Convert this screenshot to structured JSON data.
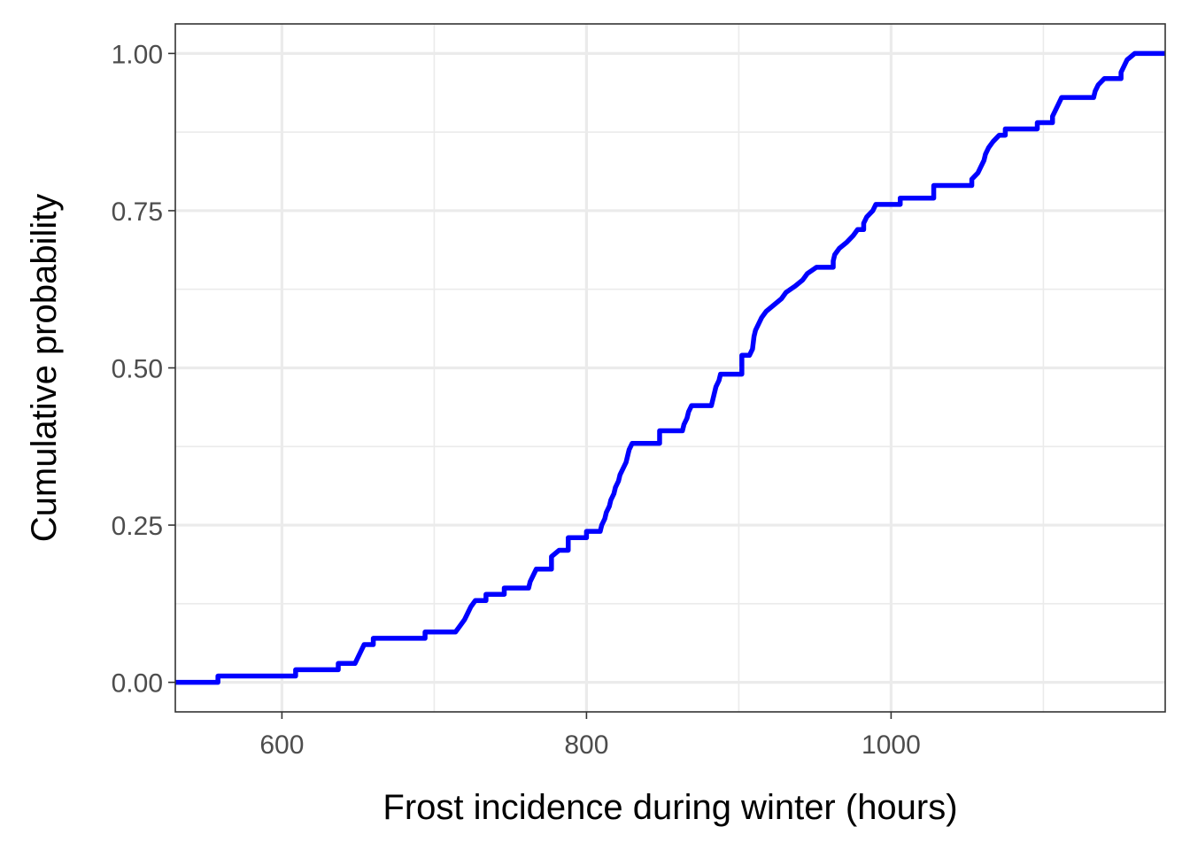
{
  "chart_data": {
    "type": "line",
    "subtype": "step-ecdf",
    "title": "",
    "xlabel": "Frost incidence during winter (hours)",
    "ylabel": "Cumulative probability",
    "xlim": [
      530,
      1180
    ],
    "ylim": [
      -0.047,
      1.047
    ],
    "x_ticks": [
      600,
      800,
      1000
    ],
    "x_tick_labels": [
      "600",
      "800",
      "1000"
    ],
    "y_ticks": [
      0,
      0.25,
      0.5,
      0.75,
      1
    ],
    "y_tick_labels": [
      "0.00",
      "0.25",
      "0.50",
      "0.75",
      "1.00"
    ],
    "grid": true,
    "legend": "none",
    "series": [
      {
        "color": "#0000ff",
        "points": [
          [
            530,
            0.0
          ],
          [
            558,
            0.0
          ],
          [
            558,
            0.01
          ],
          [
            609,
            0.01
          ],
          [
            609,
            0.02
          ],
          [
            637,
            0.02
          ],
          [
            637,
            0.03
          ],
          [
            648,
            0.03
          ],
          [
            650,
            0.04
          ],
          [
            652,
            0.05
          ],
          [
            654,
            0.06
          ],
          [
            660,
            0.06
          ],
          [
            660,
            0.07
          ],
          [
            694,
            0.07
          ],
          [
            694,
            0.08
          ],
          [
            714,
            0.08
          ],
          [
            717,
            0.09
          ],
          [
            720,
            0.1
          ],
          [
            722,
            0.11
          ],
          [
            724,
            0.12
          ],
          [
            727,
            0.13
          ],
          [
            734,
            0.13
          ],
          [
            734,
            0.14
          ],
          [
            746,
            0.14
          ],
          [
            746,
            0.15
          ],
          [
            762,
            0.15
          ],
          [
            763,
            0.16
          ],
          [
            765,
            0.17
          ],
          [
            767,
            0.18
          ],
          [
            777,
            0.18
          ],
          [
            777,
            0.2
          ],
          [
            782,
            0.21
          ],
          [
            788,
            0.21
          ],
          [
            788,
            0.23
          ],
          [
            800,
            0.23
          ],
          [
            800,
            0.24
          ],
          [
            809,
            0.24
          ],
          [
            810,
            0.25
          ],
          [
            812,
            0.26
          ],
          [
            813,
            0.27
          ],
          [
            815,
            0.28
          ],
          [
            816,
            0.29
          ],
          [
            818,
            0.3
          ],
          [
            819,
            0.31
          ],
          [
            821,
            0.32
          ],
          [
            822,
            0.33
          ],
          [
            824,
            0.34
          ],
          [
            826,
            0.35
          ],
          [
            827,
            0.36
          ],
          [
            828,
            0.37
          ],
          [
            830,
            0.38
          ],
          [
            848,
            0.38
          ],
          [
            848,
            0.4
          ],
          [
            863,
            0.4
          ],
          [
            864,
            0.41
          ],
          [
            866,
            0.42
          ],
          [
            867,
            0.43
          ],
          [
            869,
            0.44
          ],
          [
            871,
            0.44
          ],
          [
            882,
            0.44
          ],
          [
            883,
            0.45
          ],
          [
            884,
            0.46
          ],
          [
            885,
            0.47
          ],
          [
            887,
            0.48
          ],
          [
            888,
            0.49
          ],
          [
            902,
            0.49
          ],
          [
            902,
            0.52
          ],
          [
            907,
            0.52
          ],
          [
            909,
            0.53
          ],
          [
            910,
            0.55
          ],
          [
            911,
            0.56
          ],
          [
            913,
            0.57
          ],
          [
            915,
            0.58
          ],
          [
            918,
            0.59
          ],
          [
            923,
            0.6
          ],
          [
            928,
            0.61
          ],
          [
            931,
            0.62
          ],
          [
            937,
            0.63
          ],
          [
            942,
            0.64
          ],
          [
            945,
            0.65
          ],
          [
            951,
            0.66
          ],
          [
            962,
            0.66
          ],
          [
            962,
            0.67
          ],
          [
            963,
            0.68
          ],
          [
            966,
            0.69
          ],
          [
            971,
            0.7
          ],
          [
            975,
            0.71
          ],
          [
            978,
            0.72
          ],
          [
            982,
            0.72
          ],
          [
            982,
            0.73
          ],
          [
            984,
            0.74
          ],
          [
            988,
            0.75
          ],
          [
            990,
            0.76
          ],
          [
            1006,
            0.76
          ],
          [
            1006,
            0.77
          ],
          [
            1028,
            0.77
          ],
          [
            1028,
            0.79
          ],
          [
            1053,
            0.79
          ],
          [
            1053,
            0.8
          ],
          [
            1057,
            0.81
          ],
          [
            1059,
            0.82
          ],
          [
            1061,
            0.83
          ],
          [
            1062,
            0.84
          ],
          [
            1064,
            0.85
          ],
          [
            1067,
            0.86
          ],
          [
            1071,
            0.87
          ],
          [
            1075,
            0.87
          ],
          [
            1075,
            0.88
          ],
          [
            1096,
            0.88
          ],
          [
            1096,
            0.89
          ],
          [
            1106,
            0.89
          ],
          [
            1106,
            0.9
          ],
          [
            1108,
            0.91
          ],
          [
            1110,
            0.92
          ],
          [
            1112,
            0.93
          ],
          [
            1133,
            0.93
          ],
          [
            1134,
            0.94
          ],
          [
            1136,
            0.95
          ],
          [
            1140,
            0.96
          ],
          [
            1151,
            0.96
          ],
          [
            1151,
            0.97
          ],
          [
            1153,
            0.98
          ],
          [
            1155,
            0.99
          ],
          [
            1160,
            1.0
          ],
          [
            1180,
            1.0
          ]
        ]
      }
    ]
  }
}
